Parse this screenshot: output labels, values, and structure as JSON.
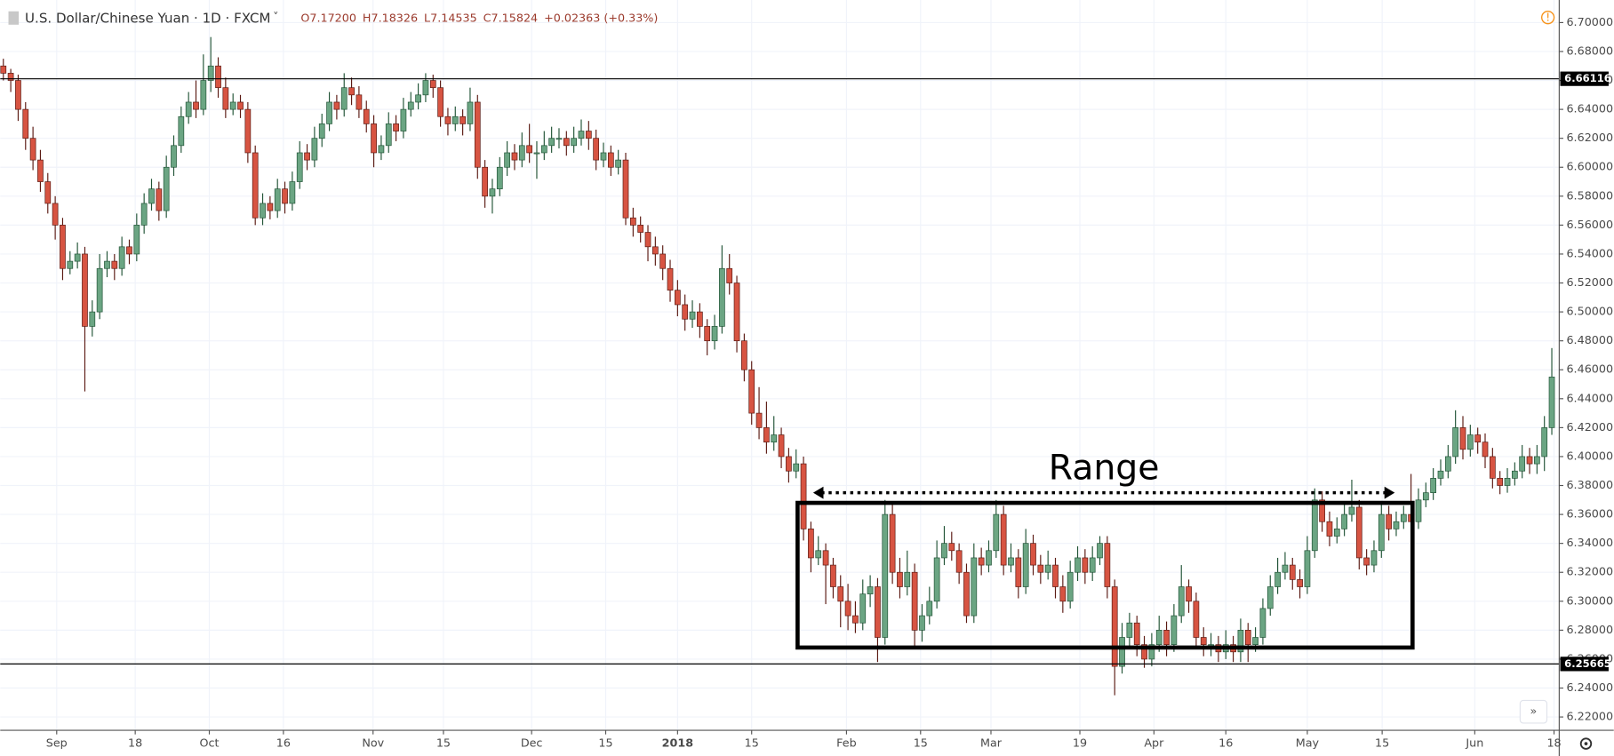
{
  "chart_data": {
    "type": "candlestick",
    "title": "U.S. Dollar/Chinese Yuan · 1D · FXCM",
    "ohlc_legend": [
      "O7.17200",
      "H7.18326",
      "L7.14535",
      "C7.15824",
      "+0.02363 (+0.33%)"
    ],
    "up_color": "#6ba583",
    "down_color": "#d75442",
    "up_border": "#225437",
    "down_border": "#5b1a13",
    "ylim": [
      6.2108,
      6.7156
    ],
    "xlim": [
      -0.42,
      210
    ],
    "yticks": [
      {
        "value": 6.22,
        "label": "6.22000"
      },
      {
        "value": 6.24,
        "label": "6.24000"
      },
      {
        "value": 6.26,
        "label": "6.26000"
      },
      {
        "value": 6.28,
        "label": "6.28000"
      },
      {
        "value": 6.3,
        "label": "6.30000"
      },
      {
        "value": 6.32,
        "label": "6.32000"
      },
      {
        "value": 6.34,
        "label": "6.34000"
      },
      {
        "value": 6.36,
        "label": "6.36000"
      },
      {
        "value": 6.38,
        "label": "6.38000"
      },
      {
        "value": 6.4,
        "label": "6.40000"
      },
      {
        "value": 6.42,
        "label": "6.42000"
      },
      {
        "value": 6.44,
        "label": "6.44000"
      },
      {
        "value": 6.46,
        "label": "6.46000"
      },
      {
        "value": 6.48,
        "label": "6.48000"
      },
      {
        "value": 6.5,
        "label": "6.50000"
      },
      {
        "value": 6.52,
        "label": "6.52000"
      },
      {
        "value": 6.54,
        "label": "6.54000"
      },
      {
        "value": 6.56,
        "label": "6.56000"
      },
      {
        "value": 6.58,
        "label": "6.58000"
      },
      {
        "value": 6.6,
        "label": "6.60000"
      },
      {
        "value": 6.62,
        "label": "6.62000"
      },
      {
        "value": 6.64,
        "label": "6.64000"
      },
      {
        "value": 6.66,
        "label": "6.66000"
      },
      {
        "value": 6.68,
        "label": "6.68000"
      },
      {
        "value": 6.7,
        "label": "6.70000"
      }
    ],
    "xticks": [
      {
        "value": 7.2,
        "label": "Sep"
      },
      {
        "value": 17.8,
        "label": "18"
      },
      {
        "value": 27.8,
        "label": "Oct"
      },
      {
        "value": 37.8,
        "label": "16"
      },
      {
        "value": 49.9,
        "label": "Nov"
      },
      {
        "value": 59.4,
        "label": "15"
      },
      {
        "value": 71.3,
        "label": "Dec"
      },
      {
        "value": 81.3,
        "label": "15"
      },
      {
        "value": 91,
        "label": "2018"
      },
      {
        "value": 101,
        "label": "15"
      },
      {
        "value": 113.8,
        "label": "Feb"
      },
      {
        "value": 123.8,
        "label": "15"
      },
      {
        "value": 133.3,
        "label": "Mar"
      },
      {
        "value": 145.3,
        "label": "19"
      },
      {
        "value": 155.3,
        "label": "Apr"
      },
      {
        "value": 165,
        "label": "16"
      },
      {
        "value": 176,
        "label": "May"
      },
      {
        "value": 186.1,
        "label": "15"
      },
      {
        "value": 198.6,
        "label": "Jun"
      },
      {
        "value": 209.3,
        "label": "18"
      }
    ],
    "grid": true,
    "price_lines": [
      {
        "value": 6.66116,
        "label": "6.66116"
      },
      {
        "value": 6.25665,
        "label": "6.25665"
      }
    ],
    "range_box": {
      "text": "Range",
      "top": 6.368,
      "bottom": 6.268,
      "start": 107.2,
      "end": 190.2,
      "arrow": 6.375,
      "arrow_start": 109.3,
      "arrow_end": 187.8
    },
    "ohlc": [
      [
        6.67,
        6.675,
        6.66,
        6.665
      ],
      [
        6.665,
        6.668,
        6.652,
        6.66
      ],
      [
        6.66,
        6.664,
        6.632,
        6.64
      ],
      [
        6.64,
        6.645,
        6.612,
        6.62
      ],
      [
        6.62,
        6.628,
        6.598,
        6.605
      ],
      [
        6.605,
        6.612,
        6.583,
        6.59
      ],
      [
        6.59,
        6.596,
        6.568,
        6.575
      ],
      [
        6.575,
        6.58,
        6.55,
        6.56
      ],
      [
        6.56,
        6.565,
        6.522,
        6.53
      ],
      [
        6.53,
        6.542,
        6.526,
        6.535
      ],
      [
        6.535,
        6.548,
        6.53,
        6.54
      ],
      [
        6.54,
        6.545,
        6.445,
        6.49
      ],
      [
        6.49,
        6.508,
        6.483,
        6.5
      ],
      [
        6.5,
        6.54,
        6.495,
        6.53
      ],
      [
        6.53,
        6.542,
        6.524,
        6.535
      ],
      [
        6.535,
        6.54,
        6.522,
        6.53
      ],
      [
        6.53,
        6.552,
        6.525,
        6.545
      ],
      [
        6.545,
        6.55,
        6.533,
        6.54
      ],
      [
        6.54,
        6.568,
        6.535,
        6.56
      ],
      [
        6.56,
        6.582,
        6.554,
        6.575
      ],
      [
        6.575,
        6.592,
        6.57,
        6.585
      ],
      [
        6.585,
        6.59,
        6.563,
        6.57
      ],
      [
        6.57,
        6.608,
        6.565,
        6.6
      ],
      [
        6.6,
        6.622,
        6.594,
        6.615
      ],
      [
        6.615,
        6.642,
        6.61,
        6.635
      ],
      [
        6.635,
        6.652,
        6.63,
        6.645
      ],
      [
        6.645,
        6.66,
        6.634,
        6.64
      ],
      [
        6.64,
        6.678,
        6.636,
        6.66
      ],
      [
        6.66,
        6.69,
        6.652,
        6.67
      ],
      [
        6.67,
        6.676,
        6.648,
        6.655
      ],
      [
        6.655,
        6.662,
        6.634,
        6.64
      ],
      [
        6.64,
        6.651,
        6.636,
        6.645
      ],
      [
        6.645,
        6.65,
        6.634,
        6.64
      ],
      [
        6.64,
        6.645,
        6.603,
        6.61
      ],
      [
        6.61,
        6.615,
        6.56,
        6.565
      ],
      [
        6.565,
        6.582,
        6.56,
        6.575
      ],
      [
        6.575,
        6.58,
        6.564,
        6.57
      ],
      [
        6.57,
        6.592,
        6.565,
        6.585
      ],
      [
        6.585,
        6.59,
        6.568,
        6.575
      ],
      [
        6.575,
        6.597,
        6.57,
        6.59
      ],
      [
        6.59,
        6.618,
        6.585,
        6.61
      ],
      [
        6.61,
        6.616,
        6.598,
        6.605
      ],
      [
        6.605,
        6.628,
        6.6,
        6.62
      ],
      [
        6.62,
        6.637,
        6.614,
        6.63
      ],
      [
        6.63,
        6.652,
        6.625,
        6.645
      ],
      [
        6.645,
        6.65,
        6.633,
        6.64
      ],
      [
        6.64,
        6.665,
        6.635,
        6.655
      ],
      [
        6.655,
        6.662,
        6.643,
        6.65
      ],
      [
        6.65,
        6.656,
        6.634,
        6.64
      ],
      [
        6.64,
        6.646,
        6.624,
        6.63
      ],
      [
        6.63,
        6.636,
        6.6,
        6.61
      ],
      [
        6.61,
        6.622,
        6.605,
        6.615
      ],
      [
        6.615,
        6.638,
        6.61,
        6.63
      ],
      [
        6.63,
        6.636,
        6.618,
        6.625
      ],
      [
        6.625,
        6.648,
        6.62,
        6.64
      ],
      [
        6.64,
        6.652,
        6.635,
        6.645
      ],
      [
        6.645,
        6.658,
        6.64,
        6.65
      ],
      [
        6.65,
        6.665,
        6.645,
        6.66
      ],
      [
        6.66,
        6.664,
        6.648,
        6.655
      ],
      [
        6.655,
        6.66,
        6.628,
        6.635
      ],
      [
        6.635,
        6.641,
        6.622,
        6.63
      ],
      [
        6.63,
        6.642,
        6.625,
        6.635
      ],
      [
        6.635,
        6.64,
        6.622,
        6.63
      ],
      [
        6.63,
        6.655,
        6.625,
        6.645
      ],
      [
        6.645,
        6.65,
        6.592,
        6.6
      ],
      [
        6.6,
        6.605,
        6.572,
        6.58
      ],
      [
        6.58,
        6.592,
        6.568,
        6.585
      ],
      [
        6.585,
        6.607,
        6.58,
        6.6
      ],
      [
        6.6,
        6.618,
        6.594,
        6.61
      ],
      [
        6.61,
        6.616,
        6.598,
        6.605
      ],
      [
        6.605,
        6.624,
        6.6,
        6.615
      ],
      [
        6.615,
        6.63,
        6.603,
        6.61
      ],
      [
        6.61,
        6.618,
        6.592,
        6.61
      ],
      [
        6.61,
        6.625,
        6.605,
        6.615
      ],
      [
        6.615,
        6.628,
        6.61,
        6.62
      ],
      [
        6.62,
        6.627,
        6.613,
        6.62
      ],
      [
        6.62,
        6.625,
        6.608,
        6.615
      ],
      [
        6.615,
        6.628,
        6.61,
        6.62
      ],
      [
        6.62,
        6.633,
        6.615,
        6.625
      ],
      [
        6.625,
        6.632,
        6.612,
        6.62
      ],
      [
        6.62,
        6.626,
        6.598,
        6.605
      ],
      [
        6.605,
        6.617,
        6.6,
        6.61
      ],
      [
        6.61,
        6.615,
        6.594,
        6.6
      ],
      [
        6.6,
        6.612,
        6.595,
        6.605
      ],
      [
        6.605,
        6.61,
        6.56,
        6.565
      ],
      [
        6.565,
        6.572,
        6.552,
        6.56
      ],
      [
        6.56,
        6.566,
        6.548,
        6.555
      ],
      [
        6.555,
        6.56,
        6.535,
        6.545
      ],
      [
        6.545,
        6.552,
        6.532,
        6.54
      ],
      [
        6.54,
        6.546,
        6.522,
        6.53
      ],
      [
        6.53,
        6.536,
        6.507,
        6.515
      ],
      [
        6.515,
        6.522,
        6.497,
        6.505
      ],
      [
        6.505,
        6.512,
        6.487,
        6.495
      ],
      [
        6.495,
        6.508,
        6.489,
        6.5
      ],
      [
        6.5,
        6.506,
        6.482,
        6.49
      ],
      [
        6.49,
        6.495,
        6.47,
        6.48
      ],
      [
        6.48,
        6.498,
        6.474,
        6.49
      ],
      [
        6.49,
        6.546,
        6.485,
        6.53
      ],
      [
        6.53,
        6.54,
        6.512,
        6.52
      ],
      [
        6.52,
        6.525,
        6.472,
        6.48
      ],
      [
        6.48,
        6.485,
        6.452,
        6.46
      ],
      [
        6.46,
        6.466,
        6.422,
        6.43
      ],
      [
        6.43,
        6.448,
        6.412,
        6.42
      ],
      [
        6.42,
        6.438,
        6.402,
        6.41
      ],
      [
        6.41,
        6.428,
        6.404,
        6.415
      ],
      [
        6.415,
        6.42,
        6.392,
        6.4
      ],
      [
        6.4,
        6.406,
        6.382,
        6.39
      ],
      [
        6.39,
        6.405,
        6.385,
        6.395
      ],
      [
        6.395,
        6.4,
        6.342,
        6.35
      ],
      [
        6.35,
        6.355,
        6.32,
        6.33
      ],
      [
        6.33,
        6.345,
        6.325,
        6.335
      ],
      [
        6.335,
        6.34,
        6.298,
        6.325
      ],
      [
        6.325,
        6.33,
        6.302,
        6.31
      ],
      [
        6.31,
        6.318,
        6.282,
        6.3
      ],
      [
        6.3,
        6.312,
        6.28,
        6.29
      ],
      [
        6.29,
        6.3,
        6.278,
        6.285
      ],
      [
        6.285,
        6.315,
        6.28,
        6.305
      ],
      [
        6.305,
        6.318,
        6.296,
        6.31
      ],
      [
        6.31,
        6.316,
        6.258,
        6.275
      ],
      [
        6.275,
        6.37,
        6.27,
        6.36
      ],
      [
        6.36,
        6.368,
        6.312,
        6.32
      ],
      [
        6.32,
        6.33,
        6.302,
        6.31
      ],
      [
        6.31,
        6.335,
        6.304,
        6.32
      ],
      [
        6.32,
        6.326,
        6.268,
        6.28
      ],
      [
        6.28,
        6.298,
        6.272,
        6.29
      ],
      [
        6.29,
        6.31,
        6.284,
        6.3
      ],
      [
        6.3,
        6.342,
        6.295,
        6.33
      ],
      [
        6.33,
        6.352,
        6.325,
        6.34
      ],
      [
        6.34,
        6.348,
        6.328,
        6.335
      ],
      [
        6.335,
        6.34,
        6.312,
        6.32
      ],
      [
        6.32,
        6.326,
        6.285,
        6.29
      ],
      [
        6.29,
        6.34,
        6.285,
        6.33
      ],
      [
        6.33,
        6.337,
        6.318,
        6.325
      ],
      [
        6.325,
        6.342,
        6.32,
        6.335
      ],
      [
        6.335,
        6.37,
        6.33,
        6.36
      ],
      [
        6.36,
        6.366,
        6.318,
        6.325
      ],
      [
        6.325,
        6.34,
        6.32,
        6.33
      ],
      [
        6.33,
        6.336,
        6.302,
        6.31
      ],
      [
        6.31,
        6.35,
        6.305,
        6.34
      ],
      [
        6.34,
        6.346,
        6.318,
        6.325
      ],
      [
        6.325,
        6.332,
        6.312,
        6.32
      ],
      [
        6.32,
        6.335,
        6.315,
        6.325
      ],
      [
        6.325,
        6.33,
        6.302,
        6.31
      ],
      [
        6.31,
        6.318,
        6.292,
        6.3
      ],
      [
        6.3,
        6.328,
        6.295,
        6.32
      ],
      [
        6.32,
        6.338,
        6.314,
        6.33
      ],
      [
        6.33,
        6.336,
        6.312,
        6.32
      ],
      [
        6.32,
        6.338,
        6.314,
        6.33
      ],
      [
        6.33,
        6.345,
        6.325,
        6.34
      ],
      [
        6.34,
        6.345,
        6.302,
        6.31
      ],
      [
        6.31,
        6.315,
        6.235,
        6.255
      ],
      [
        6.255,
        6.285,
        6.25,
        6.275
      ],
      [
        6.275,
        6.292,
        6.268,
        6.285
      ],
      [
        6.285,
        6.29,
        6.262,
        6.27
      ],
      [
        6.27,
        6.276,
        6.254,
        6.26
      ],
      [
        6.26,
        6.278,
        6.255,
        6.27
      ],
      [
        6.27,
        6.29,
        6.265,
        6.28
      ],
      [
        6.28,
        6.286,
        6.262,
        6.27
      ],
      [
        6.27,
        6.298,
        6.265,
        6.29
      ],
      [
        6.29,
        6.325,
        6.285,
        6.31
      ],
      [
        6.31,
        6.315,
        6.292,
        6.3
      ],
      [
        6.3,
        6.306,
        6.268,
        6.275
      ],
      [
        6.275,
        6.282,
        6.262,
        6.27
      ],
      [
        6.27,
        6.278,
        6.262,
        6.27
      ],
      [
        6.27,
        6.276,
        6.258,
        6.265
      ],
      [
        6.265,
        6.28,
        6.26,
        6.27
      ],
      [
        6.27,
        6.276,
        6.258,
        6.265
      ],
      [
        6.265,
        6.288,
        6.258,
        6.28
      ],
      [
        6.28,
        6.285,
        6.258,
        6.27
      ],
      [
        6.27,
        6.282,
        6.265,
        6.275
      ],
      [
        6.275,
        6.302,
        6.27,
        6.295
      ],
      [
        6.295,
        6.318,
        6.29,
        6.31
      ],
      [
        6.31,
        6.33,
        6.305,
        6.32
      ],
      [
        6.32,
        6.334,
        6.315,
        6.325
      ],
      [
        6.325,
        6.33,
        6.308,
        6.315
      ],
      [
        6.315,
        6.322,
        6.302,
        6.31
      ],
      [
        6.31,
        6.345,
        6.305,
        6.335
      ],
      [
        6.335,
        6.378,
        6.33,
        6.37
      ],
      [
        6.37,
        6.376,
        6.348,
        6.355
      ],
      [
        6.355,
        6.362,
        6.338,
        6.345
      ],
      [
        6.345,
        6.358,
        6.34,
        6.35
      ],
      [
        6.35,
        6.368,
        6.345,
        6.36
      ],
      [
        6.36,
        6.384,
        6.355,
        6.365
      ],
      [
        6.365,
        6.37,
        6.322,
        6.33
      ],
      [
        6.33,
        6.336,
        6.318,
        6.325
      ],
      [
        6.325,
        6.342,
        6.32,
        6.335
      ],
      [
        6.335,
        6.368,
        6.33,
        6.36
      ],
      [
        6.36,
        6.366,
        6.342,
        6.35
      ],
      [
        6.35,
        6.362,
        6.345,
        6.355
      ],
      [
        6.355,
        6.366,
        6.35,
        6.36
      ],
      [
        6.36,
        6.388,
        6.348,
        6.355
      ],
      [
        6.355,
        6.378,
        6.35,
        6.37
      ],
      [
        6.37,
        6.382,
        6.365,
        6.375
      ],
      [
        6.375,
        6.392,
        6.37,
        6.385
      ],
      [
        6.385,
        6.398,
        6.38,
        6.39
      ],
      [
        6.39,
        6.408,
        6.385,
        6.4
      ],
      [
        6.4,
        6.432,
        6.395,
        6.42
      ],
      [
        6.42,
        6.428,
        6.398,
        6.405
      ],
      [
        6.405,
        6.422,
        6.4,
        6.415
      ],
      [
        6.415,
        6.42,
        6.402,
        6.41
      ],
      [
        6.41,
        6.416,
        6.392,
        6.4
      ],
      [
        6.4,
        6.406,
        6.378,
        6.385
      ],
      [
        6.385,
        6.39,
        6.374,
        6.38
      ],
      [
        6.38,
        6.392,
        6.375,
        6.385
      ],
      [
        6.385,
        6.396,
        6.38,
        6.39
      ],
      [
        6.39,
        6.408,
        6.385,
        6.4
      ],
      [
        6.4,
        6.406,
        6.388,
        6.395
      ],
      [
        6.395,
        6.408,
        6.388,
        6.4
      ],
      [
        6.4,
        6.428,
        6.39,
        6.42
      ],
      [
        6.42,
        6.475,
        6.415,
        6.455
      ]
    ]
  }
}
